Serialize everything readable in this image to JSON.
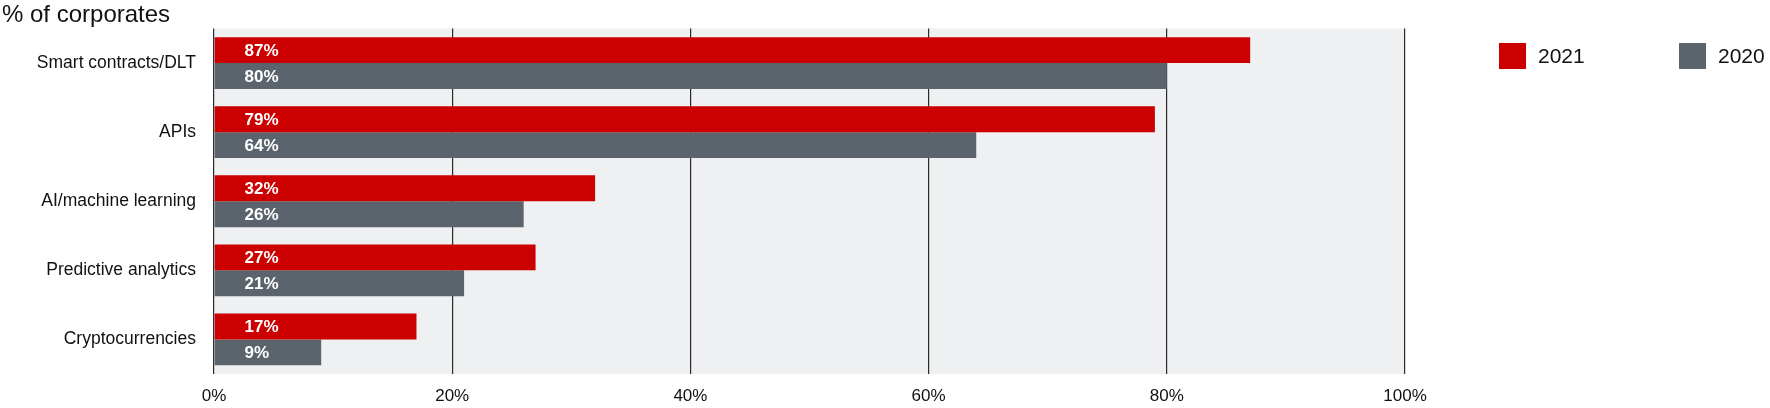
{
  "chart_data": {
    "type": "bar",
    "orientation": "horizontal",
    "title": "% of corporates",
    "categories": [
      "Smart contracts/DLT",
      "APIs",
      "AI/machine learning",
      "Predictive analytics",
      "Cryptocurrencies"
    ],
    "series": [
      {
        "name": "2021",
        "color": "#cc0000",
        "values": [
          87,
          79,
          32,
          27,
          17
        ],
        "value_labels": [
          "87%",
          "79%",
          "32%",
          "27%",
          "17%"
        ]
      },
      {
        "name": "2020",
        "color": "#5b646d",
        "values": [
          80,
          64,
          26,
          21,
          9
        ],
        "value_labels": [
          "80%",
          "64%",
          "26%",
          "21%",
          "9%"
        ]
      }
    ],
    "xlim": [
      0,
      100
    ],
    "xticks": [
      {
        "value": 0,
        "label": "0%"
      },
      {
        "value": 20,
        "label": "20%"
      },
      {
        "value": 40,
        "label": "40%"
      },
      {
        "value": 60,
        "label": "60%"
      },
      {
        "value": 80,
        "label": "80%"
      },
      {
        "value": 100,
        "label": "100%"
      }
    ],
    "grid": "x",
    "legend": "top right"
  }
}
